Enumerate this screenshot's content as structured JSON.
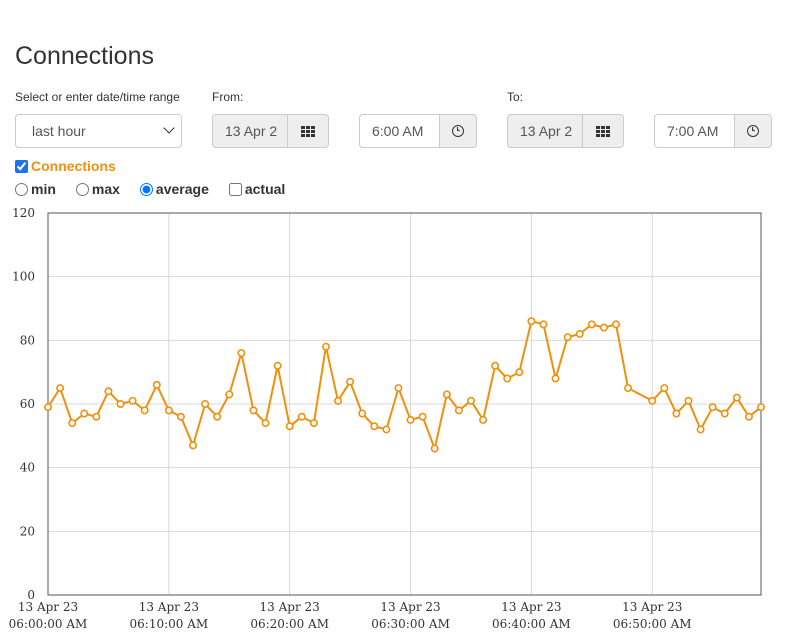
{
  "page": {
    "title": "Connections"
  },
  "range": {
    "label": "Select or enter date/time range",
    "selected": "last hour",
    "options": [
      "last hour"
    ]
  },
  "from": {
    "label": "From:",
    "date": "13 Apr 2",
    "time": "6:00 AM"
  },
  "to": {
    "label": "To:",
    "date": "13 Apr 2",
    "time": "7:00 AM"
  },
  "series_toggle": {
    "label": "Connections",
    "checked": true,
    "color": "#f0900c"
  },
  "modes": [
    {
      "label": "min",
      "checked": false
    },
    {
      "label": "max",
      "checked": false
    },
    {
      "label": "average",
      "checked": true
    },
    {
      "label": "actual",
      "checked": false
    }
  ],
  "icons": {
    "calendar": "calendar-grid-icon",
    "clock": "clock-icon",
    "caret": "chevron-down-icon"
  },
  "chart_data": {
    "type": "line",
    "title": "",
    "xlabel": "",
    "ylabel": "",
    "ylim": [
      0,
      120
    ],
    "yticks": [
      0,
      20,
      40,
      60,
      80,
      100,
      120
    ],
    "xlim": [
      "06:00:00",
      "06:59:00"
    ],
    "grid": true,
    "legend": "none",
    "line_color": "#f0900c",
    "x_tick_labels": [
      {
        "line1": "13 Apr 23",
        "line2": "06:00:00 AM",
        "x": "06:00:00"
      },
      {
        "line1": "13 Apr 23",
        "line2": "06:10:00 AM",
        "x": "06:10:00"
      },
      {
        "line1": "13 Apr 23",
        "line2": "06:20:00 AM",
        "x": "06:20:00"
      },
      {
        "line1": "13 Apr 23",
        "line2": "06:30:00 AM",
        "x": "06:30:00"
      },
      {
        "line1": "13 Apr 23",
        "line2": "06:40:00 AM",
        "x": "06:40:00"
      },
      {
        "line1": "13 Apr 23",
        "line2": "06:50:00 AM",
        "x": "06:50:00"
      }
    ],
    "series": [
      {
        "x": [
          "06:00:00",
          "06:01:00",
          "06:02:00",
          "06:03:00",
          "06:04:00",
          "06:05:00",
          "06:06:00",
          "06:07:00",
          "06:08:00",
          "06:09:00",
          "06:10:00",
          "06:11:00",
          "06:12:00",
          "06:13:00",
          "06:14:00",
          "06:15:00",
          "06:16:00",
          "06:17:00",
          "06:18:00",
          "06:19:00",
          "06:20:00",
          "06:21:00",
          "06:22:00",
          "06:23:00",
          "06:24:00",
          "06:25:00",
          "06:26:00",
          "06:27:00",
          "06:28:00",
          "06:29:00",
          "06:30:00",
          "06:31:00",
          "06:32:00",
          "06:33:00",
          "06:34:00",
          "06:35:00",
          "06:36:00",
          "06:37:00",
          "06:38:00",
          "06:39:00",
          "06:40:00",
          "06:41:00",
          "06:42:00",
          "06:43:00",
          "06:44:00",
          "06:45:00",
          "06:46:00",
          "06:47:00",
          "06:48:00",
          "06:50:00",
          "06:51:00",
          "06:52:00",
          "06:53:00",
          "06:54:00",
          "06:55:00",
          "06:56:00",
          "06:57:00",
          "06:58:00",
          "06:59:00"
        ],
        "values": [
          59,
          65,
          54,
          57,
          56,
          64,
          60,
          61,
          58,
          66,
          58,
          56,
          47,
          60,
          56,
          63,
          76,
          58,
          54,
          72,
          53,
          56,
          54,
          78,
          61,
          67,
          57,
          53,
          52,
          65,
          55,
          56,
          46,
          63,
          58,
          61,
          55,
          72,
          68,
          70,
          86,
          85,
          68,
          81,
          82,
          85,
          84,
          85,
          65,
          61,
          65,
          57,
          61,
          52,
          59,
          57,
          62,
          56,
          59
        ]
      }
    ]
  }
}
